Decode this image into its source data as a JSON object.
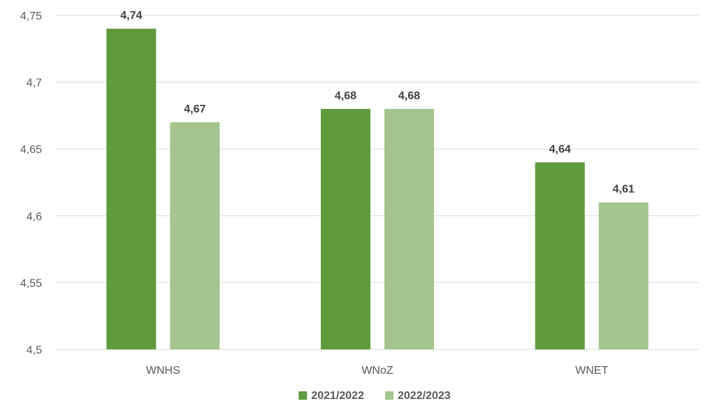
{
  "chart_data": {
    "type": "bar",
    "title": "",
    "xlabel": "",
    "ylabel": "",
    "categories": [
      "WNHS",
      "WNoZ",
      "WNET"
    ],
    "series": [
      {
        "name": "2021/2022",
        "color": "#5f9a3c",
        "values": [
          4.74,
          4.68,
          4.64
        ]
      },
      {
        "name": "2022/2023",
        "color": "#a4c58d",
        "values": [
          4.67,
          4.68,
          4.61
        ]
      }
    ],
    "ylim": [
      4.5,
      4.75
    ],
    "yticks": [
      "4,5",
      "4,55",
      "4,6",
      "4,65",
      "4,7",
      "4,75"
    ],
    "data_labels": [
      [
        "4,74",
        "4,68",
        "4,64"
      ],
      [
        "4,67",
        "4,68",
        "4,61"
      ]
    ],
    "grid": true,
    "legend_position": "bottom"
  }
}
